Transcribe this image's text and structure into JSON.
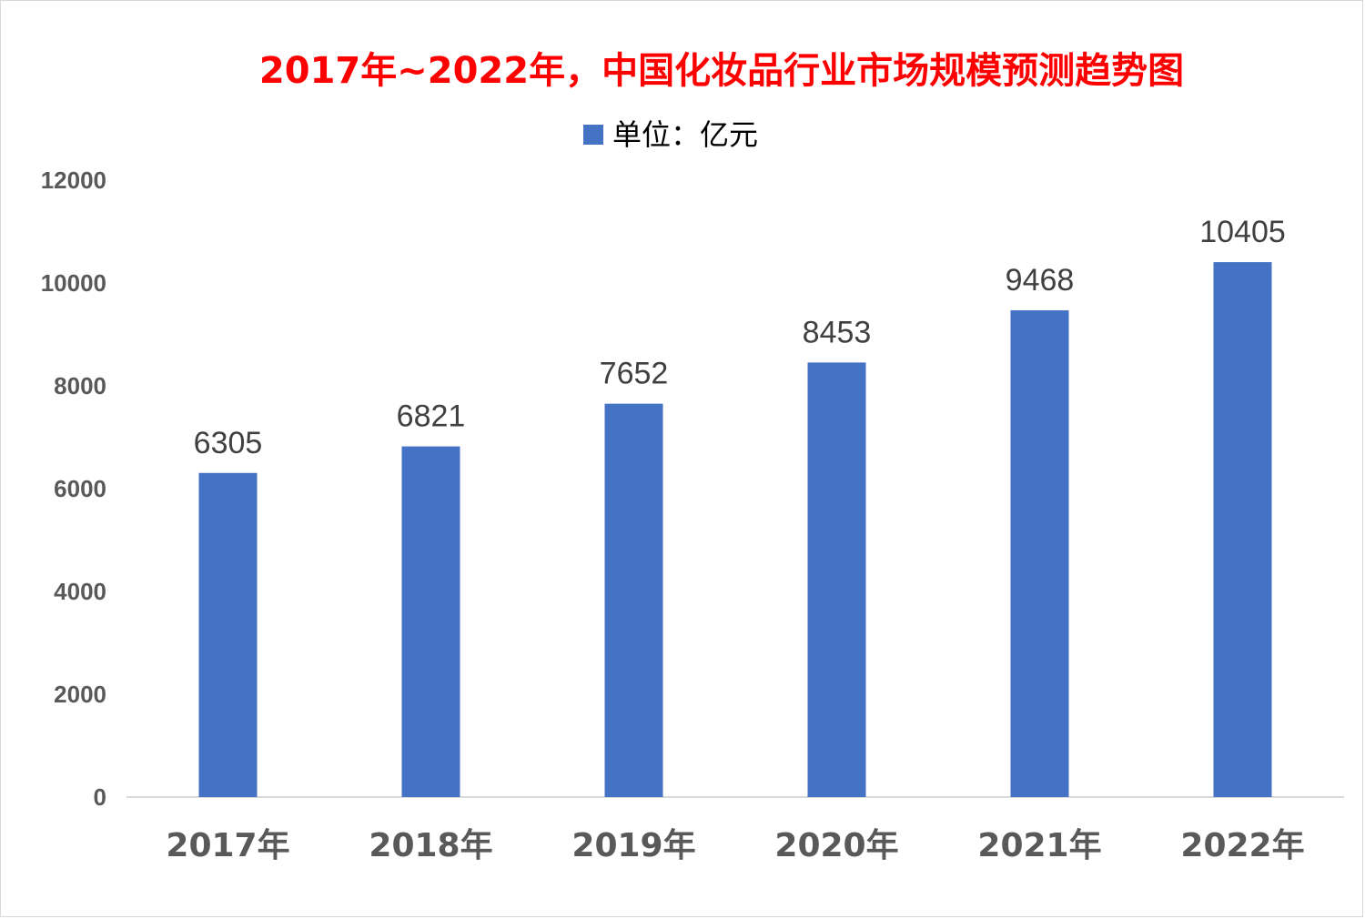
{
  "chart_data": {
    "type": "bar",
    "title": "2017年~2022年，中国化妆品行业市场规模预测趋势图",
    "legend": "单位：亿元",
    "legend_placement": "top-center",
    "categories": [
      "2017年",
      "2018年",
      "2019年",
      "2020年",
      "2021年",
      "2022年"
    ],
    "values": [
      6305,
      6821,
      7652,
      8453,
      9468,
      10405
    ],
    "ylim": [
      0,
      12000
    ],
    "yticks": [
      0,
      2000,
      4000,
      6000,
      8000,
      10000,
      12000
    ],
    "grid": false,
    "data_labels": true
  },
  "colors": {
    "title": "#ff0000",
    "bar": "#4472c4",
    "axis_text": "#595959",
    "data_label": "#404040",
    "axis_line": "#d9d9d9"
  }
}
